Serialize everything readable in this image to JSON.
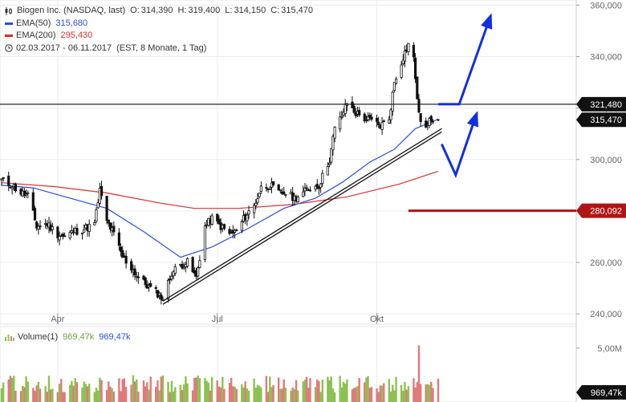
{
  "legend": {
    "title": "Biogen Inc. (NASDAQ, last)",
    "o_label": "O:",
    "o": "314,390",
    "h_label": "H:",
    "h": "319,400",
    "l_label": "L:",
    "l": "314,150",
    "c_label": "C:",
    "c": "315,470",
    "ema50_label": "EMA(50)",
    "ema50_value": "315,680",
    "ema200_label": "EMA(200)",
    "ema200_value": "295,430",
    "range": "02.03.2017 - 06.11.2017",
    "range_note": "(EST, 8 Monate, 1 Tag)"
  },
  "volume_legend": {
    "label": "Volume(1)",
    "value_green": "969,47k",
    "value_blue": "969,47k"
  },
  "colors": {
    "ema50": "#2b4fd6",
    "ema200": "#d9302a",
    "candle": "#111111",
    "trendline": "#111111",
    "resistance": "#111111",
    "support": "#b01414",
    "arrows": "#1230e0",
    "volume_up": "#8cc152",
    "volume_down": "#e07a7a",
    "current_tag": "#111111",
    "support_tag": "#b01414",
    "volume_tag": "#111111"
  },
  "icons": {
    "chart_type": "candlestick-icon",
    "range": "clock-icon",
    "volume": "volume-bars-icon"
  },
  "chart_data": {
    "type": "candlestick",
    "ylim": [
      236,
      362
    ],
    "yticks": [
      240,
      260,
      280,
      300,
      320,
      340,
      360
    ],
    "ytick_labels": [
      "240,000",
      "260,000",
      "280,000",
      "300,000",
      "320,000",
      "340,000",
      "360,000"
    ],
    "xticks": [
      {
        "label": "Apr",
        "date": "2017-04-03"
      },
      {
        "label": "Jul",
        "date": "2017-07-03"
      },
      {
        "label": "Okt",
        "date": "2017-10-02"
      }
    ],
    "x_start": "2017-03-02",
    "x_end": "2017-11-06",
    "right_tags": [
      {
        "value": 321.48,
        "label": "321,480",
        "role": "resistance"
      },
      {
        "value": 315.47,
        "label": "315,470",
        "role": "last"
      },
      {
        "value": 280.092,
        "label": "280,092",
        "role": "support"
      }
    ],
    "price_path": [
      [
        "2017-03-02",
        292
      ],
      [
        "2017-03-08",
        290
      ],
      [
        "2017-03-13",
        287
      ],
      [
        "2017-03-17",
        286
      ],
      [
        "2017-03-22",
        274
      ],
      [
        "2017-03-28",
        275
      ],
      [
        "2017-04-03",
        271
      ],
      [
        "2017-04-07",
        270
      ],
      [
        "2017-04-12",
        272
      ],
      [
        "2017-04-18",
        273
      ],
      [
        "2017-04-24",
        275
      ],
      [
        "2017-04-27",
        288
      ],
      [
        "2017-05-01",
        276
      ],
      [
        "2017-05-05",
        271
      ],
      [
        "2017-05-10",
        262
      ],
      [
        "2017-05-15",
        258
      ],
      [
        "2017-05-19",
        254
      ],
      [
        "2017-05-24",
        251
      ],
      [
        "2017-05-30",
        248
      ],
      [
        "2017-06-02",
        246
      ],
      [
        "2017-06-07",
        256
      ],
      [
        "2017-06-12",
        259
      ],
      [
        "2017-06-16",
        260
      ],
      [
        "2017-06-21",
        254
      ],
      [
        "2017-06-26",
        274
      ],
      [
        "2017-06-30",
        277
      ],
      [
        "2017-07-05",
        274
      ],
      [
        "2017-07-10",
        271
      ],
      [
        "2017-07-14",
        272
      ],
      [
        "2017-07-19",
        278
      ],
      [
        "2017-07-24",
        282
      ],
      [
        "2017-07-28",
        289
      ],
      [
        "2017-08-02",
        290
      ],
      [
        "2017-08-07",
        287
      ],
      [
        "2017-08-11",
        287
      ],
      [
        "2017-08-16",
        285
      ],
      [
        "2017-08-21",
        287
      ],
      [
        "2017-08-25",
        289
      ],
      [
        "2017-08-30",
        290
      ],
      [
        "2017-09-05",
        300
      ],
      [
        "2017-09-08",
        312
      ],
      [
        "2017-09-12",
        317
      ],
      [
        "2017-09-15",
        322
      ],
      [
        "2017-09-20",
        318
      ],
      [
        "2017-09-25",
        316
      ],
      [
        "2017-09-29",
        315
      ],
      [
        "2017-10-04",
        313
      ],
      [
        "2017-10-09",
        316
      ],
      [
        "2017-10-12",
        330
      ],
      [
        "2017-10-17",
        340
      ],
      [
        "2017-10-20",
        345
      ],
      [
        "2017-10-23",
        339
      ],
      [
        "2017-10-26",
        317
      ],
      [
        "2017-10-30",
        312
      ],
      [
        "2017-11-02",
        316
      ],
      [
        "2017-11-06",
        315.47
      ]
    ],
    "ema50": [
      [
        "2017-03-02",
        290
      ],
      [
        "2017-03-20",
        289
      ],
      [
        "2017-04-10",
        285
      ],
      [
        "2017-05-01",
        281
      ],
      [
        "2017-05-22",
        272
      ],
      [
        "2017-06-12",
        262
      ],
      [
        "2017-06-30",
        266
      ],
      [
        "2017-07-20",
        273
      ],
      [
        "2017-08-10",
        281
      ],
      [
        "2017-08-28",
        285
      ],
      [
        "2017-09-12",
        291
      ],
      [
        "2017-09-28",
        299
      ],
      [
        "2017-10-12",
        304
      ],
      [
        "2017-10-24",
        312
      ],
      [
        "2017-11-06",
        315.68
      ]
    ],
    "ema200": [
      [
        "2017-03-02",
        291
      ],
      [
        "2017-04-01",
        289.5
      ],
      [
        "2017-05-01",
        287
      ],
      [
        "2017-06-01",
        283
      ],
      [
        "2017-06-20",
        281
      ],
      [
        "2017-07-15",
        281
      ],
      [
        "2017-08-15",
        282.5
      ],
      [
        "2017-09-15",
        285.5
      ],
      [
        "2017-10-15",
        290.5
      ],
      [
        "2017-11-06",
        295.43
      ]
    ],
    "trendline": {
      "from": [
        "2017-06-02",
        245
      ],
      "to": [
        "2017-11-08",
        312
      ]
    },
    "resistance_line": {
      "value": 321.48
    },
    "support_line": {
      "value": 280.092,
      "from": "2017-10-20"
    },
    "forecast_arrows": [
      {
        "points": [
          [
            "2017-11-06",
            321.48
          ],
          [
            "2017-11-18",
            321.48
          ],
          [
            "2017-12-06",
            356
          ]
        ]
      },
      {
        "points": [
          [
            "2017-11-08",
            306
          ],
          [
            "2017-11-16",
            294
          ],
          [
            "2017-11-28",
            318
          ]
        ]
      }
    ],
    "volume": {
      "ylim": [
        0,
        7
      ],
      "ytick": 5,
      "ytick_label": "5,00M",
      "last_label": "969,47k",
      "spike": {
        "date": "2017-10-26",
        "value": 5.25
      }
    }
  }
}
